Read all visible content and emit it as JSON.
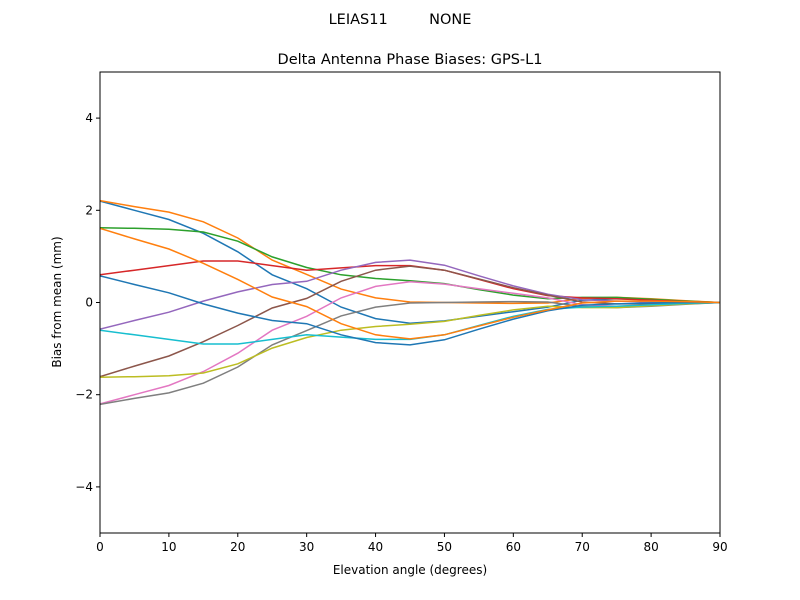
{
  "suptitle": "LEIAS11         NONE",
  "chart_data": {
    "type": "line",
    "title": "Delta Antenna Phase Biases: GPS-L1",
    "xlabel": "Elevation angle (degrees)",
    "ylabel": "Bias from mean (mm)",
    "xlim": [
      0,
      90
    ],
    "ylim": [
      -5,
      5
    ],
    "grid": false,
    "xticks": [
      0,
      10,
      20,
      30,
      40,
      50,
      60,
      70,
      80,
      90
    ],
    "xtick_labels": [
      "0",
      "10",
      "20",
      "30",
      "40",
      "50",
      "60",
      "70",
      "80",
      "90"
    ],
    "yticks": [
      -4,
      -2,
      0,
      2,
      4
    ],
    "ytick_labels": [
      "−4",
      "−2",
      "0",
      "2",
      "4"
    ],
    "colors": [
      "#1f77b4",
      "#ff7f0e",
      "#2ca02c",
      "#d62728",
      "#9467bd",
      "#8c564b",
      "#e377c2",
      "#7f7f7f",
      "#bcbd22",
      "#17becf"
    ],
    "x": [
      0,
      5,
      10,
      15,
      20,
      25,
      30,
      35,
      40,
      45,
      50,
      55,
      60,
      65,
      70,
      75,
      80,
      85,
      90
    ],
    "series": [
      {
        "values": [
          2.2,
          2.0,
          1.8,
          1.5,
          1.1,
          0.6,
          0.3,
          -0.1,
          -0.35,
          -0.45,
          -0.4,
          -0.3,
          -0.2,
          -0.1,
          0.05,
          0.08,
          0.06,
          0.03,
          0
        ]
      },
      {
        "values": [
          2.21,
          2.08,
          1.96,
          1.75,
          1.4,
          0.92,
          0.61,
          0.29,
          0.1,
          0.01,
          0.0,
          -0.01,
          -0.02,
          -0.01,
          0.09,
          0.11,
          0.08,
          0.04,
          0
        ]
      },
      {
        "values": [
          1.62,
          1.61,
          1.59,
          1.53,
          1.33,
          0.99,
          0.76,
          0.6,
          0.52,
          0.47,
          0.41,
          0.28,
          0.16,
          0.08,
          0.11,
          0.11,
          0.07,
          0.03,
          0
        ]
      },
      {
        "values": [
          0.6,
          0.7,
          0.8,
          0.9,
          0.9,
          0.8,
          0.7,
          0.75,
          0.8,
          0.8,
          0.7,
          0.5,
          0.3,
          0.15,
          0.1,
          0.08,
          0.05,
          0.02,
          0
        ]
      },
      {
        "values": [
          -0.58,
          -0.39,
          -0.21,
          0.03,
          0.23,
          0.39,
          0.46,
          0.7,
          0.87,
          0.92,
          0.81,
          0.58,
          0.36,
          0.18,
          0.06,
          0.03,
          0.01,
          0.0,
          0
        ]
      },
      {
        "values": [
          -1.61,
          -1.38,
          -1.16,
          -0.85,
          -0.5,
          -0.12,
          0.09,
          0.46,
          0.7,
          0.79,
          0.7,
          0.51,
          0.32,
          0.16,
          0.01,
          -0.03,
          -0.03,
          -0.02,
          0
        ]
      },
      {
        "values": [
          -2.2,
          -2.0,
          -1.8,
          -1.5,
          -1.1,
          -0.6,
          -0.3,
          0.1,
          0.35,
          0.45,
          0.4,
          0.3,
          0.2,
          0.1,
          -0.05,
          -0.08,
          -0.06,
          -0.03,
          0
        ]
      },
      {
        "values": [
          -2.21,
          -2.08,
          -1.96,
          -1.75,
          -1.4,
          -0.92,
          -0.61,
          -0.29,
          -0.1,
          -0.01,
          0.0,
          0.01,
          0.02,
          0.01,
          -0.09,
          -0.11,
          -0.08,
          -0.04,
          0
        ]
      },
      {
        "values": [
          -1.62,
          -1.61,
          -1.59,
          -1.53,
          -1.33,
          -0.99,
          -0.76,
          -0.6,
          -0.52,
          -0.47,
          -0.41,
          -0.28,
          -0.16,
          -0.08,
          -0.11,
          -0.11,
          -0.07,
          -0.03,
          0
        ]
      },
      {
        "values": [
          -0.6,
          -0.7,
          -0.8,
          -0.9,
          -0.9,
          -0.8,
          -0.7,
          -0.75,
          -0.8,
          -0.8,
          -0.7,
          -0.5,
          -0.3,
          -0.15,
          -0.1,
          -0.08,
          -0.05,
          -0.02,
          0
        ]
      },
      {
        "values": [
          0.58,
          0.39,
          0.21,
          -0.03,
          -0.23,
          -0.39,
          -0.46,
          -0.7,
          -0.87,
          -0.92,
          -0.81,
          -0.58,
          -0.36,
          -0.18,
          -0.06,
          -0.03,
          -0.01,
          0.0,
          0
        ]
      },
      {
        "values": [
          1.61,
          1.38,
          1.16,
          0.85,
          0.5,
          0.12,
          -0.09,
          -0.46,
          -0.7,
          -0.79,
          -0.7,
          -0.51,
          -0.32,
          -0.16,
          -0.01,
          0.03,
          0.03,
          0.02,
          0
        ]
      }
    ]
  }
}
